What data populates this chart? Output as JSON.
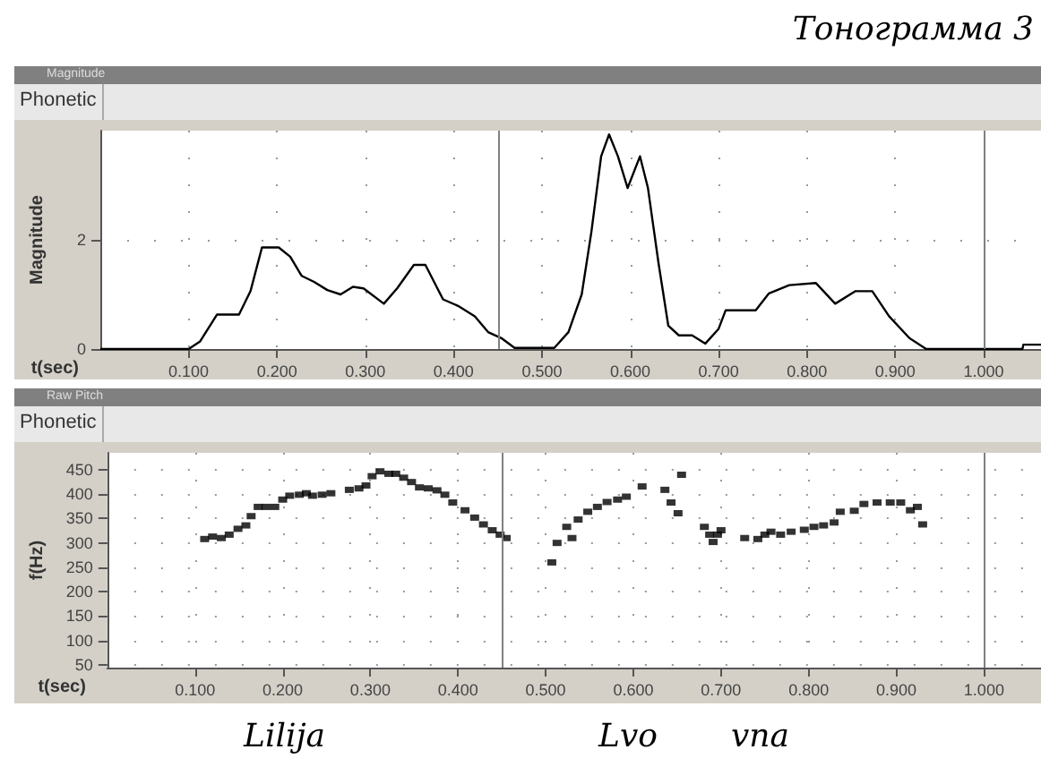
{
  "chart_data": [
    {
      "type": "line",
      "title": "Тонограмма 3",
      "subtitle": "Magnitude",
      "annotations": [
        "Phonetic"
      ],
      "xlabel": "t(sec)",
      "ylabel": "Magnitude",
      "color": "#000000",
      "marker": "none",
      "grid": true,
      "x": [
        0,
        0.1,
        0.113,
        0.132,
        0.157,
        0.17,
        0.183,
        0.202,
        0.215,
        0.228,
        0.242,
        0.257,
        0.272,
        0.286,
        0.298,
        0.321,
        0.336,
        0.355,
        0.368,
        0.388,
        0.405,
        0.424,
        0.439,
        0.454,
        0.469,
        0.514,
        0.53,
        0.545,
        0.556,
        0.567,
        0.576,
        0.586,
        0.597,
        0.611,
        0.62,
        0.632,
        0.643,
        0.655,
        0.67,
        0.685,
        0.7,
        0.708,
        0.742,
        0.757,
        0.78,
        0.81,
        0.832,
        0.855,
        0.874,
        0.893,
        0.916,
        0.935,
        1.044,
        1.045,
        1.065
      ],
      "values": [
        0,
        0,
        0.14,
        0.63,
        0.63,
        1.06,
        1.86,
        1.86,
        1.69,
        1.34,
        1.23,
        1.08,
        1.0,
        1.14,
        1.11,
        0.83,
        1.11,
        1.54,
        1.54,
        0.91,
        0.79,
        0.6,
        0.31,
        0.2,
        0.02,
        0.02,
        0.31,
        1.0,
        2.15,
        3.53,
        3.93,
        3.53,
        2.95,
        3.53,
        2.95,
        1.57,
        0.43,
        0.25,
        0.25,
        0.1,
        0.37,
        0.71,
        0.71,
        1.02,
        1.17,
        1.21,
        0.83,
        1.06,
        1.06,
        0.6,
        0.2,
        0,
        0,
        0.08,
        0.08
      ],
      "xlim": [
        0,
        1.065
      ],
      "ylim": [
        0,
        4
      ],
      "yticks": [
        0,
        2
      ],
      "xticks": [
        {
          "value": 0.1,
          "label": "0.100"
        },
        {
          "value": 0.2,
          "label": "0.200"
        },
        {
          "value": 0.3,
          "label": "0.300"
        },
        {
          "value": 0.4,
          "label": "0.400"
        },
        {
          "value": 0.5,
          "label": "0.500"
        },
        {
          "value": 0.6,
          "label": "0.600"
        },
        {
          "value": 0.7,
          "label": "0.700"
        },
        {
          "value": 0.8,
          "label": "0.800"
        },
        {
          "value": 0.9,
          "label": "0.900"
        },
        {
          "value": 1.0,
          "label": "1.000"
        }
      ],
      "ref_lines": [
        {
          "axis": "x",
          "value": 0.45,
          "color": "#808080"
        },
        {
          "axis": "x",
          "value": 1.0,
          "color": "#808080"
        }
      ]
    },
    {
      "type": "scatter",
      "subtitle": "Raw Pitch",
      "xlabel": "t(sec)",
      "ylabel": "f(Hz)",
      "color": "#000000",
      "marker": "square",
      "grid": true,
      "annotations": [
        "Phonetic",
        "Lilija",
        "Lvo",
        "vna"
      ],
      "x": [
        0.111,
        0.12,
        0.13,
        0.139,
        0.149,
        0.158,
        0.164,
        0.172,
        0.181,
        0.191,
        0.2,
        0.208,
        0.219,
        0.227,
        0.234,
        0.245,
        0.255,
        0.276,
        0.287,
        0.295,
        0.302,
        0.311,
        0.321,
        0.329,
        0.338,
        0.347,
        0.356,
        0.366,
        0.376,
        0.385,
        0.394,
        0.408,
        0.419,
        0.429,
        0.439,
        0.448,
        0.455,
        0.507,
        0.513,
        0.524,
        0.53,
        0.537,
        0.548,
        0.559,
        0.57,
        0.582,
        0.592,
        0.61,
        0.636,
        0.643,
        0.651,
        0.655,
        0.681,
        0.687,
        0.691,
        0.696,
        0.7,
        0.727,
        0.742,
        0.75,
        0.757,
        0.768,
        0.78,
        0.795,
        0.806,
        0.817,
        0.829,
        0.836,
        0.852,
        0.863,
        0.878,
        0.893,
        0.905,
        0.916,
        0.924,
        0.93
      ],
      "values": [
        308,
        313,
        310,
        317,
        329,
        336,
        355,
        374,
        374,
        374,
        389,
        397,
        399,
        402,
        397,
        399,
        402,
        409,
        412,
        418,
        437,
        447,
        442,
        442,
        434,
        425,
        414,
        412,
        408,
        399,
        383,
        367,
        352,
        338,
        326,
        317,
        310,
        260,
        300,
        333,
        310,
        348,
        364,
        374,
        384,
        389,
        395,
        416,
        409,
        383,
        361,
        440,
        333,
        317,
        302,
        317,
        326,
        310,
        308,
        317,
        323,
        317,
        323,
        327,
        333,
        336,
        342,
        364,
        366,
        380,
        383,
        383,
        383,
        367,
        374,
        338
      ],
      "xlim": [
        0,
        1.065
      ],
      "ylim": [
        44,
        485
      ],
      "yticks": [
        50,
        100,
        150,
        200,
        250,
        300,
        350,
        400,
        450
      ],
      "xticks": [
        {
          "value": 0.1,
          "label": "0.100"
        },
        {
          "value": 0.2,
          "label": "0.200"
        },
        {
          "value": 0.3,
          "label": "0.300"
        },
        {
          "value": 0.4,
          "label": "0.400"
        },
        {
          "value": 0.5,
          "label": "0.500"
        },
        {
          "value": 0.6,
          "label": "0.600"
        },
        {
          "value": 0.7,
          "label": "0.700"
        },
        {
          "value": 0.8,
          "label": "0.800"
        },
        {
          "value": 0.9,
          "label": "0.900"
        },
        {
          "value": 1.0,
          "label": "1.000"
        }
      ],
      "ref_lines": [
        {
          "axis": "x",
          "value": 0.45,
          "color": "#808080"
        },
        {
          "axis": "x",
          "value": 1.0,
          "color": "#808080"
        }
      ]
    }
  ]
}
